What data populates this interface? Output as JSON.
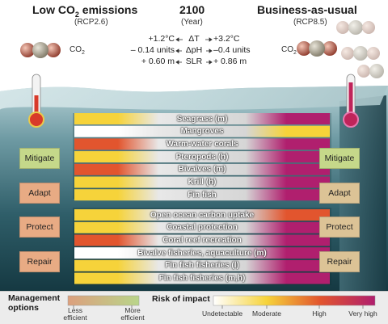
{
  "header": {
    "left_title": "Low CO",
    "left_title_sub": "2",
    "left_title_rest": " emissions",
    "left_subtitle": "(RCP2.6)",
    "center_title": "2100",
    "center_subtitle": "(Year)",
    "right_title": "Business-as-usual",
    "right_subtitle": "(RCP8.5)",
    "co2_label": "CO",
    "co2_sub": "2"
  },
  "changes": [
    {
      "low": "+1.2°C",
      "symbol": "ΔT",
      "high": "+3.2°C"
    },
    {
      "low": "– 0.14 units",
      "symbol": "ΔpH",
      "high": "–0.4 units"
    },
    {
      "low": "+ 0.60 m",
      "symbol": "SLR",
      "high": "+ 0.86 m"
    }
  ],
  "management_boxes": {
    "left": [
      {
        "label": "Mitigate",
        "color": "#c5d88a"
      },
      {
        "label": "Adapt",
        "color": "#e8ab84"
      },
      {
        "label": "Protect",
        "color": "#e8ab84"
      },
      {
        "label": "Repair",
        "color": "#e8ab84"
      }
    ],
    "right": [
      {
        "label": "Mitigate",
        "color": "#c5d88a"
      },
      {
        "label": "Adapt",
        "color": "#dcc396"
      },
      {
        "label": "Protect",
        "color": "#dcc396"
      },
      {
        "label": "Repair",
        "color": "#dcc396"
      }
    ]
  },
  "group1": [
    {
      "label": "Seagrass (m)",
      "low": "moderate",
      "high": "very_high"
    },
    {
      "label": "Mangroves",
      "low": "undetectable",
      "high": "moderate"
    },
    {
      "label": "Warm-water corals",
      "low": "high",
      "high": "very_high"
    },
    {
      "label": "Pteropods (h)",
      "low": "moderate",
      "high": "very_high"
    },
    {
      "label": "Bivalves (m)",
      "low": "high",
      "high": "very_high"
    },
    {
      "label": "Krill (h)",
      "low": "moderate",
      "high": "very_high"
    },
    {
      "label": "Fin fish",
      "low": "moderate",
      "high": "very_high"
    }
  ],
  "group2": [
    {
      "label": "Open ocean carbon uptake",
      "low": "moderate",
      "high": "high"
    },
    {
      "label": "Coastal protection",
      "low": "moderate",
      "high": "very_high"
    },
    {
      "label": "Coral reef recreation",
      "low": "high",
      "high": "very_high"
    },
    {
      "label": "Bivalve fisheries, aquaculture (m)",
      "low": "undetectable",
      "high": "very_high"
    },
    {
      "label": "Fin fish fisheries (l)",
      "low": "moderate",
      "high": "very_high"
    },
    {
      "label": "Fin fish fisheries (m,h)",
      "low": "moderate",
      "high": "very_high"
    }
  ],
  "risk_colors": {
    "undetectable": "#ffffff",
    "moderate": "#f6d33a",
    "high": "#e2552e",
    "very_high": "#b01f6e"
  },
  "legend": {
    "management_title": "Management options",
    "less_efficient": "Less efficient",
    "more_efficient": "More efficient",
    "risk_title": "Risk of impact",
    "risk_levels": [
      "Undetectable",
      "Moderate",
      "High",
      "Very high"
    ]
  }
}
